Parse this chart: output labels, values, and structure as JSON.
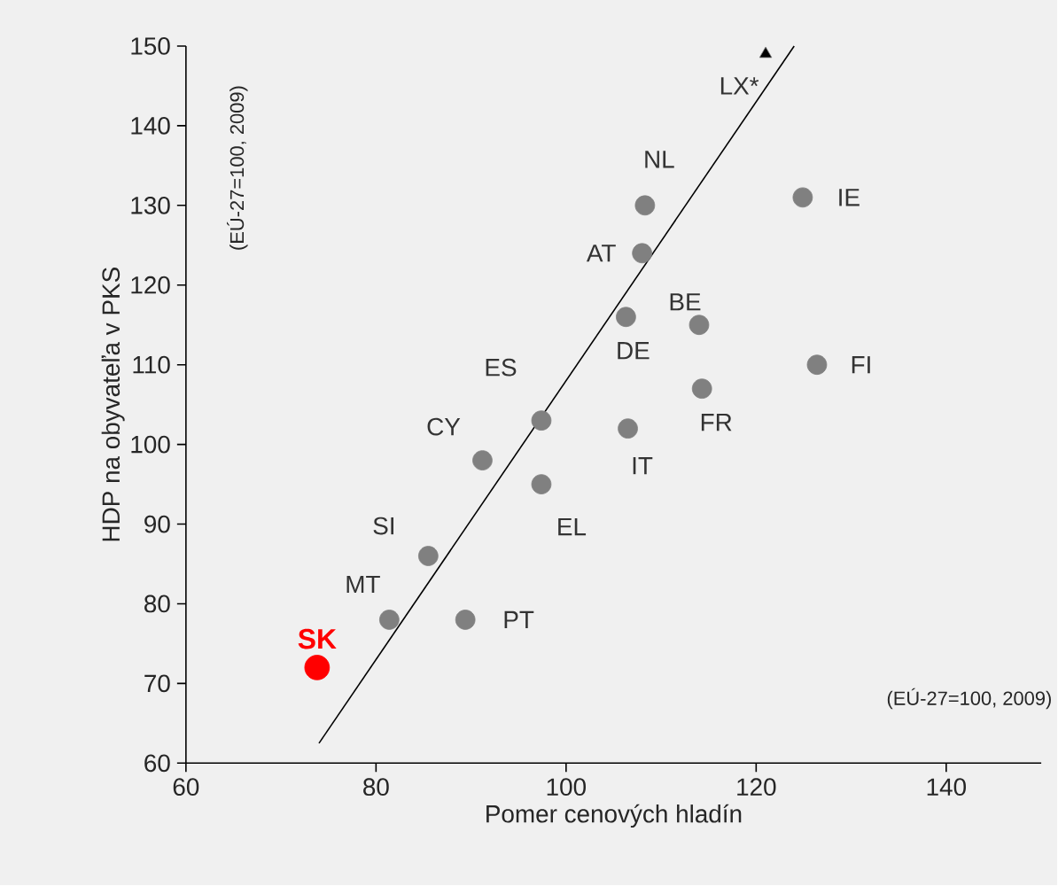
{
  "chart_data": {
    "type": "scatter",
    "xlabel": "Pomer cenových hladín",
    "ylabel": "HDP na obyvateľa v PKS",
    "xlim": [
      60,
      150
    ],
    "xticks": [
      60,
      80,
      100,
      120,
      140
    ],
    "ylim": [
      60,
      150
    ],
    "yticks": [
      60,
      70,
      80,
      90,
      100,
      110,
      120,
      130,
      140,
      150
    ],
    "series": [
      {
        "marker": "circle",
        "color": "#808080",
        "x": [
          108.3,
          124.9,
          108,
          106.3,
          114,
          126.4,
          114.3,
          97.4,
          106.5,
          91.2,
          97.4,
          85.5,
          81.4,
          89.4
        ],
        "values": [
          130,
          131,
          124,
          116,
          115,
          110,
          107,
          103,
          102,
          98,
          95,
          86,
          78,
          78
        ]
      },
      {
        "marker": "triangle",
        "color": "#000000",
        "x": [
          121
        ],
        "values": [
          149
        ]
      },
      {
        "marker": "circle",
        "name": "SK",
        "color": "#ff0000",
        "x": [
          73.8
        ],
        "values": [
          72
        ]
      },
      {
        "type": "line",
        "marker": "none",
        "line_style": "solid",
        "color": "#000000",
        "x": [
          74,
          124
        ],
        "values": [
          62.5,
          150
        ]
      }
    ],
    "annotations": [
      "(EÚ-27=100, 2009)",
      "(EÚ-27=100, 2009)",
      {
        "text": "LX*",
        "x": 121,
        "y": 149
      },
      {
        "text": "NL",
        "x": 108.3,
        "y": 130
      },
      {
        "text": "IE",
        "x": 124.9,
        "y": 131
      },
      {
        "text": "AT",
        "x": 108,
        "y": 124
      },
      {
        "text": "BE",
        "x": 114,
        "y": 115
      },
      {
        "text": "DE",
        "x": 106.3,
        "y": 116
      },
      {
        "text": "FI",
        "x": 126.4,
        "y": 110
      },
      {
        "text": "FR",
        "x": 114.3,
        "y": 107
      },
      {
        "text": "ES",
        "x": 97.4,
        "y": 103
      },
      {
        "text": "IT",
        "x": 106.5,
        "y": 102
      },
      {
        "text": "CY",
        "x": 91.2,
        "y": 98
      },
      {
        "text": "EL",
        "x": 97.4,
        "y": 95
      },
      {
        "text": "SI",
        "x": 85.5,
        "y": 86
      },
      {
        "text": "MT",
        "x": 81.4,
        "y": 78
      },
      {
        "text": "PT",
        "x": 89.4,
        "y": 78
      }
    ]
  }
}
